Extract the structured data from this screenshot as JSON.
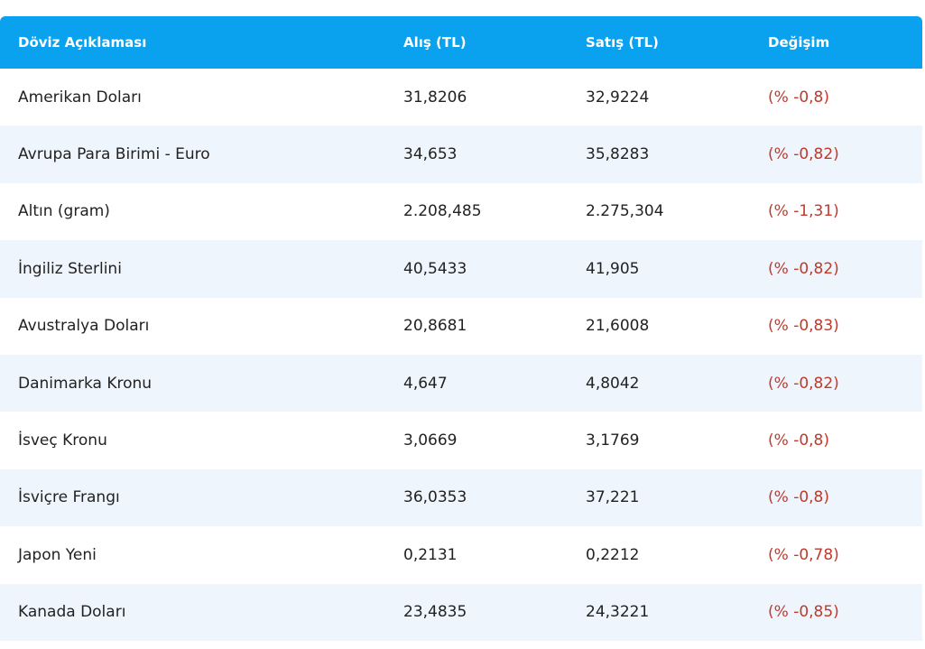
{
  "table": {
    "headers": {
      "name": "Döviz Açıklaması",
      "buy": "Alış (TL)",
      "sell": "Satış (TL)",
      "change": "Değişim"
    },
    "rows": [
      {
        "name": "Amerikan Doları",
        "buy": "31,8206",
        "sell": "32,9224",
        "change": "(% -0,8)"
      },
      {
        "name": "Avrupa Para Birimi - Euro",
        "buy": "34,653",
        "sell": "35,8283",
        "change": "(% -0,82)"
      },
      {
        "name": "Altın (gram)",
        "buy": "2.208,485",
        "sell": "2.275,304",
        "change": "(% -1,31)"
      },
      {
        "name": "İngiliz Sterlini",
        "buy": "40,5433",
        "sell": "41,905",
        "change": "(% -0,82)"
      },
      {
        "name": "Avustralya Doları",
        "buy": "20,8681",
        "sell": "21,6008",
        "change": "(% -0,83)"
      },
      {
        "name": "Danimarka Kronu",
        "buy": "4,647",
        "sell": "4,8042",
        "change": "(% -0,82)"
      },
      {
        "name": "İsveç Kronu",
        "buy": "3,0669",
        "sell": "3,1769",
        "change": "(% -0,8)"
      },
      {
        "name": "İsviçre Frangı",
        "buy": "36,0353",
        "sell": "37,221",
        "change": "(% -0,8)"
      },
      {
        "name": "Japon Yeni",
        "buy": "0,2131",
        "sell": "0,2212",
        "change": "(% -0,78)"
      },
      {
        "name": "Kanada Doları",
        "buy": "23,4835",
        "sell": "24,3221",
        "change": "(% -0,85)"
      }
    ]
  },
  "colors": {
    "header_bg": "#0aa1ee",
    "row_alt_bg": "#eff5fc",
    "negative_change": "#c0392b"
  }
}
